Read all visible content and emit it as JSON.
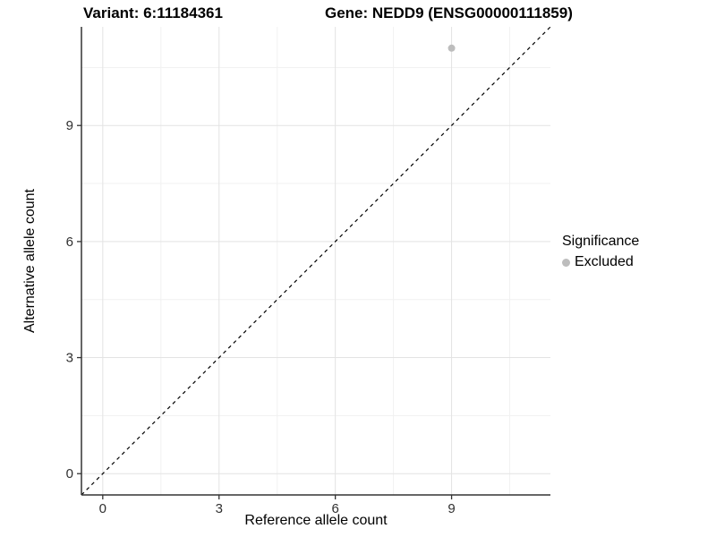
{
  "colors": {
    "grid_major": "#e3e3e3",
    "grid_minor": "#f1f1f1",
    "axis": "#333333",
    "tick_text": "#303030",
    "point": "#bdbdbd",
    "identity_line": "#000000"
  },
  "chart_data": {
    "type": "scatter",
    "title_left": "Variant: 6:11184361",
    "title_right": "Gene: NEDD9 (ENSG00000111859)",
    "xlabel": "Reference allele count",
    "ylabel": "Alternative allele count",
    "xlim": [
      -0.55,
      11.55
    ],
    "ylim": [
      -0.55,
      11.55
    ],
    "xticks": [
      0,
      3,
      6,
      9
    ],
    "yticks": [
      0,
      3,
      6,
      9
    ],
    "x_minor_ticks": [
      1.5,
      4.5,
      7.5,
      10.5
    ],
    "y_minor_ticks": [
      1.5,
      4.5,
      7.5,
      10.5
    ],
    "grid": true,
    "legend_position": "right",
    "identity_line": {
      "style": "dashed",
      "color": "#000000",
      "from": -0.55,
      "to": 11.55
    },
    "series": [
      {
        "name": "Excluded",
        "color": "#bdbdbd",
        "points": [
          [
            9,
            11
          ]
        ]
      }
    ],
    "legend": {
      "title": "Significance",
      "items": [
        {
          "label": "Excluded",
          "color": "#bdbdbd"
        }
      ]
    }
  }
}
